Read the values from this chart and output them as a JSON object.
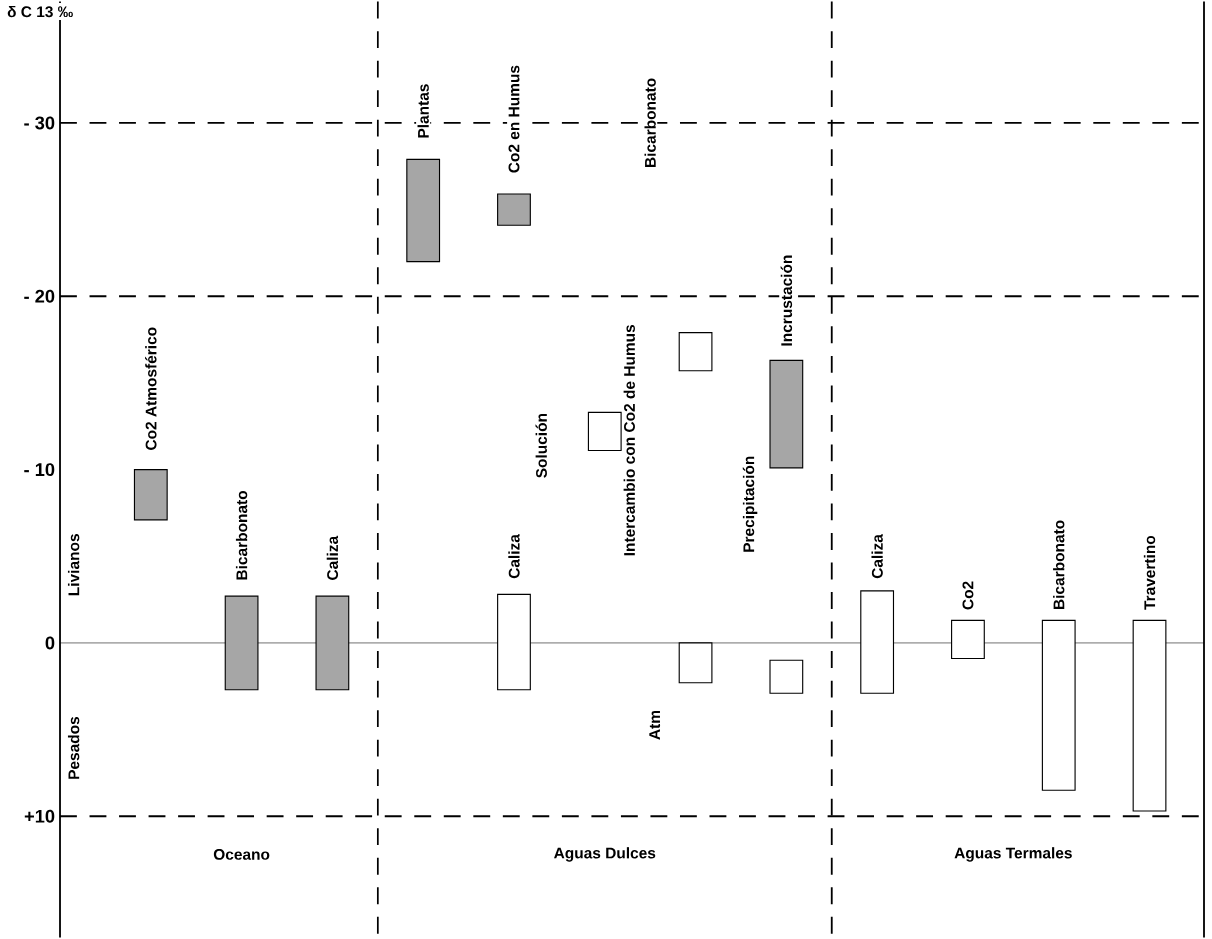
{
  "chart_data": {
    "type": "bar",
    "ylabel": "δ C 13 ‰",
    "categories": [
      null,
      null,
      null,
      null,
      null,
      null,
      null,
      null,
      null,
      null,
      null,
      null
    ],
    "series": [
      {
        "color": "#a6a6a6",
        "base": [
          -10,
          -2.7,
          -2.7,
          -27.9,
          -25.9,
          null,
          null,
          -16.3,
          null,
          null,
          null,
          null
        ],
        "values": [
          2.9,
          5.4,
          5.4,
          5.9,
          1.8,
          null,
          null,
          6.2,
          null,
          null,
          null,
          null
        ]
      },
      {
        "color": "#ffffff",
        "base": [
          null,
          null,
          null,
          null,
          -2.8,
          -13.3,
          -17.9,
          null,
          -3.0,
          -1.3,
          -1.3,
          -1.3
        ],
        "values": [
          null,
          null,
          null,
          null,
          5.5,
          2.2,
          2.2,
          null,
          5.9,
          2.2,
          9.8,
          11.0
        ]
      },
      {
        "color": "#ffffff",
        "base": [
          null,
          null,
          null,
          null,
          null,
          null,
          0,
          1.0,
          null,
          null,
          null,
          null
        ],
        "values": [
          null,
          null,
          null,
          null,
          null,
          null,
          2.3,
          1.9,
          null,
          null,
          null,
          null
        ]
      }
    ],
    "ylim": [
      17,
      -37
    ],
    "yticks": [
      {
        "value": -30,
        "label": "- 30"
      },
      {
        "value": -20,
        "label": "- 20"
      },
      {
        "value": -10,
        "label": "- 10"
      },
      0,
      {
        "value": 10,
        "label": "+10"
      }
    ],
    "ref_lines": [
      {
        "axis": "y",
        "value": -30,
        "line_style": "dashed"
      },
      {
        "axis": "y",
        "value": -20,
        "line_style": "dashed"
      },
      {
        "axis": "y",
        "value": 10,
        "line_style": "dashed"
      },
      {
        "axis": "y",
        "value": 0,
        "line_style": "solid"
      }
    ],
    "annotations": [
      "Co2 Atmosférico",
      "Bicarbonato",
      "Caliza",
      "Plantas",
      "Co2 en Humus",
      "Caliza",
      "Solución",
      "Bicarbonato",
      "Intercambio con Co2 de Humus",
      "Atm",
      "Precipitación",
      "Incrustación",
      "Caliza",
      "Co2",
      "Bicarbonato",
      "Travertino",
      "Oceano",
      "Aguas Dulces",
      "Aguas Termales",
      "Livianos",
      "Pesados"
    ]
  }
}
